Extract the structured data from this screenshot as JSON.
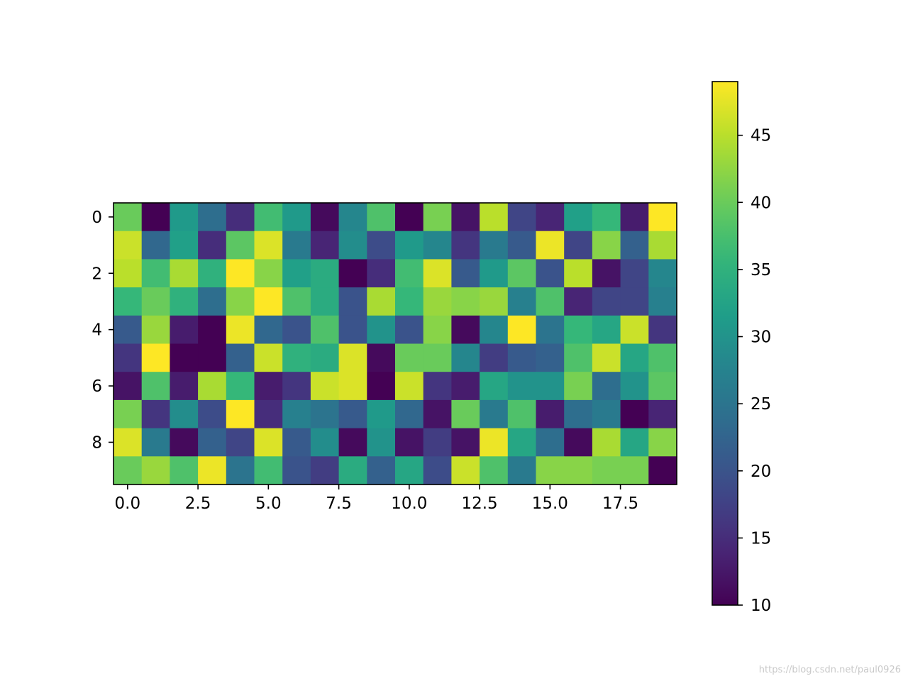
{
  "chart_data": {
    "type": "heatmap",
    "title": "",
    "xlabel": "",
    "ylabel": "",
    "colormap": "viridis",
    "n_rows": 10,
    "n_cols": 20,
    "xticks": [
      0.0,
      2.5,
      5.0,
      7.5,
      10.0,
      12.5,
      15.0,
      17.5
    ],
    "xtick_labels": [
      "0.0",
      "2.5",
      "5.0",
      "7.5",
      "10.0",
      "12.5",
      "15.0",
      "17.5"
    ],
    "yticks": [
      0,
      2,
      4,
      6,
      8
    ],
    "ytick_labels": [
      "0",
      "2",
      "4",
      "6",
      "8"
    ],
    "colorbar": {
      "range": [
        10,
        49
      ],
      "ticks": [
        10,
        15,
        20,
        25,
        30,
        35,
        40,
        45
      ],
      "tick_labels": [
        "10",
        "15",
        "20",
        "25",
        "30",
        "35",
        "40",
        "45"
      ]
    },
    "values": [
      [
        40,
        10,
        31,
        24,
        15,
        37,
        31,
        11,
        28,
        38,
        10,
        41,
        12,
        45,
        18,
        14,
        32,
        36,
        13,
        49
      ],
      [
        46,
        23,
        32,
        15,
        39,
        47,
        26,
        14,
        29,
        19,
        31,
        28,
        16,
        26,
        21,
        48,
        18,
        42,
        22,
        44
      ],
      [
        45,
        37,
        44,
        35,
        49,
        42,
        32,
        34,
        10,
        15,
        37,
        47,
        21,
        31,
        39,
        20,
        45,
        12,
        18,
        28
      ],
      [
        36,
        40,
        35,
        24,
        42,
        49,
        38,
        34,
        20,
        44,
        36,
        43,
        42,
        43,
        27,
        38,
        14,
        18,
        18,
        27
      ],
      [
        21,
        43,
        13,
        10,
        48,
        23,
        20,
        38,
        20,
        30,
        20,
        42,
        11,
        28,
        49,
        25,
        36,
        33,
        46,
        16
      ],
      [
        16,
        49,
        10,
        10,
        22,
        46,
        35,
        34,
        47,
        11,
        40,
        40,
        28,
        17,
        21,
        22,
        38,
        46,
        33,
        38
      ],
      [
        12,
        38,
        13,
        44,
        36,
        13,
        16,
        46,
        47,
        10,
        46,
        16,
        13,
        33,
        30,
        30,
        41,
        24,
        30,
        39
      ],
      [
        41,
        16,
        29,
        19,
        49,
        15,
        27,
        25,
        21,
        31,
        23,
        12,
        40,
        26,
        38,
        13,
        24,
        26,
        10,
        14
      ],
      [
        47,
        26,
        11,
        22,
        18,
        47,
        21,
        29,
        11,
        30,
        12,
        17,
        12,
        48,
        33,
        24,
        11,
        44,
        33,
        42
      ],
      [
        40,
        43,
        38,
        48,
        25,
        37,
        20,
        17,
        34,
        22,
        33,
        19,
        46,
        38,
        26,
        42,
        42,
        41,
        41,
        10
      ]
    ]
  },
  "watermark": "https://blog.csdn.net/paul0926"
}
